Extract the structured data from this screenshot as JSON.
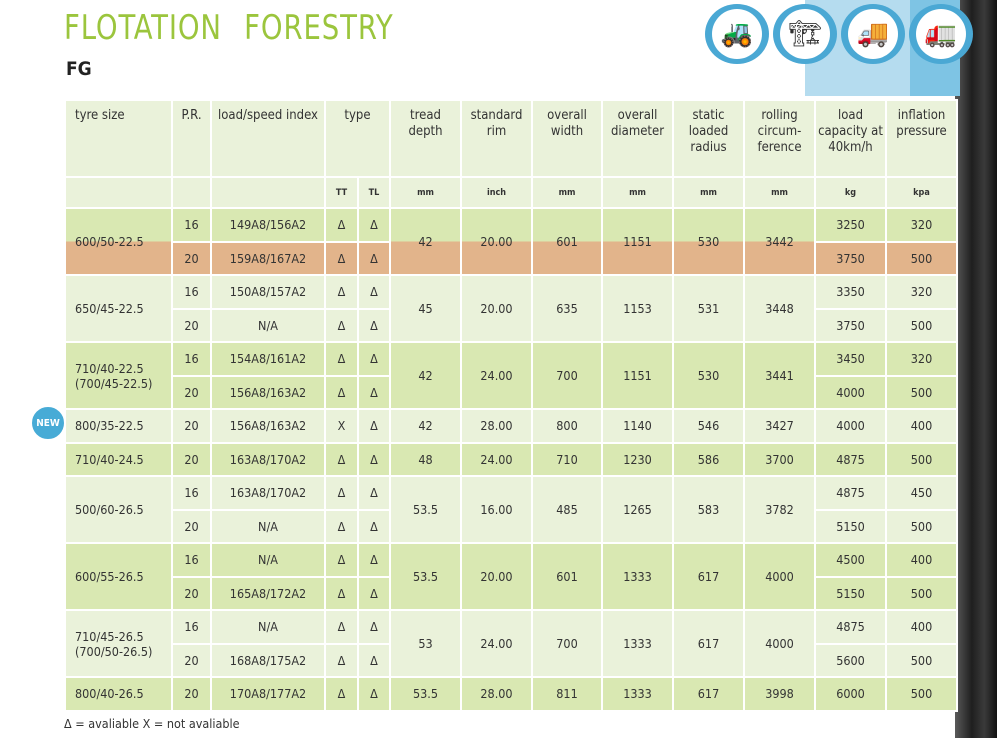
{
  "title": "FLOTATION  FORESTRY",
  "subtitle": "FG",
  "icons": [
    "tractor-icon",
    "harvester-icon",
    "log-truck-icon",
    "forwarder-icon"
  ],
  "headers": [
    "tyre size",
    "P.R.",
    "load/speed index",
    "type",
    "tread depth",
    "standard rim",
    "overall width",
    "overall diameter",
    "static loaded radius",
    "rolling circum-ference",
    "load capacity at 40km/h",
    "inflation pressure"
  ],
  "units": [
    "",
    "",
    "",
    "TT",
    "TL",
    "mm",
    "inch",
    "mm",
    "mm",
    "mm",
    "mm",
    "kg",
    "kpa"
  ],
  "new_badge": "NEW",
  "groups": [
    {
      "tyre_size": "600/50-22.5",
      "tread": "42",
      "rim": "20.00",
      "width": "601",
      "diameter": "1151",
      "radius": "530",
      "rolling": "3442",
      "rows": [
        {
          "pr": "16",
          "index": "149A8/156A2",
          "tt": "Δ",
          "tl": "Δ",
          "load": "3250",
          "pressure": "320"
        },
        {
          "pr": "20",
          "index": "159A8/167A2",
          "tt": "Δ",
          "tl": "Δ",
          "load": "3750",
          "pressure": "500",
          "highlight": true
        }
      ]
    },
    {
      "tyre_size": "650/45-22.5",
      "tread": "45",
      "rim": "20.00",
      "width": "635",
      "diameter": "1153",
      "radius": "531",
      "rolling": "3448",
      "rows": [
        {
          "pr": "16",
          "index": "150A8/157A2",
          "tt": "Δ",
          "tl": "Δ",
          "load": "3350",
          "pressure": "320"
        },
        {
          "pr": "20",
          "index": "N/A",
          "tt": "Δ",
          "tl": "Δ",
          "load": "3750",
          "pressure": "500"
        }
      ]
    },
    {
      "tyre_size": "710/40-22.5 (700/45-22.5)",
      "tread": "42",
      "rim": "24.00",
      "width": "700",
      "diameter": "1151",
      "radius": "530",
      "rolling": "3441",
      "rows": [
        {
          "pr": "16",
          "index": "154A8/161A2",
          "tt": "Δ",
          "tl": "Δ",
          "load": "3450",
          "pressure": "320"
        },
        {
          "pr": "20",
          "index": "156A8/163A2",
          "tt": "Δ",
          "tl": "Δ",
          "load": "4000",
          "pressure": "500"
        }
      ]
    },
    {
      "tyre_size": "800/35-22.5",
      "is_new": true,
      "tread": "42",
      "rim": "28.00",
      "width": "800",
      "diameter": "1140",
      "radius": "546",
      "rolling": "3427",
      "rows": [
        {
          "pr": "20",
          "index": "156A8/163A2",
          "tt": "X",
          "tl": "Δ",
          "load": "4000",
          "pressure": "400"
        }
      ]
    },
    {
      "tyre_size": "710/40-24.5",
      "tread": "48",
      "rim": "24.00",
      "width": "710",
      "diameter": "1230",
      "radius": "586",
      "rolling": "3700",
      "rows": [
        {
          "pr": "20",
          "index": "163A8/170A2",
          "tt": "Δ",
          "tl": "Δ",
          "load": "4875",
          "pressure": "500"
        }
      ]
    },
    {
      "tyre_size": "500/60-26.5",
      "tread": "53.5",
      "rim": "16.00",
      "width": "485",
      "diameter": "1265",
      "radius": "583",
      "rolling": "3782",
      "rows": [
        {
          "pr": "16",
          "index": "163A8/170A2",
          "tt": "Δ",
          "tl": "Δ",
          "load": "4875",
          "pressure": "450"
        },
        {
          "pr": "20",
          "index": "N/A",
          "tt": "Δ",
          "tl": "Δ",
          "load": "5150",
          "pressure": "500"
        }
      ]
    },
    {
      "tyre_size": "600/55-26.5",
      "tread": "53.5",
      "rim": "20.00",
      "width": "601",
      "diameter": "1333",
      "radius": "617",
      "rolling": "4000",
      "rows": [
        {
          "pr": "16",
          "index": "N/A",
          "tt": "Δ",
          "tl": "Δ",
          "load": "4500",
          "pressure": "400"
        },
        {
          "pr": "20",
          "index": "165A8/172A2",
          "tt": "Δ",
          "tl": "Δ",
          "load": "5150",
          "pressure": "500"
        }
      ]
    },
    {
      "tyre_size": "710/45-26.5 (700/50-26.5)",
      "tread": "53",
      "rim": "24.00",
      "width": "700",
      "diameter": "1333",
      "radius": "617",
      "rolling": "4000",
      "rows": [
        {
          "pr": "16",
          "index": "N/A",
          "tt": "Δ",
          "tl": "Δ",
          "load": "4875",
          "pressure": "400"
        },
        {
          "pr": "20",
          "index": "168A8/175A2",
          "tt": "Δ",
          "tl": "Δ",
          "load": "5600",
          "pressure": "500"
        }
      ]
    },
    {
      "tyre_size": "800/40-26.5",
      "tread": "53.5",
      "rim": "28.00",
      "width": "811",
      "diameter": "1333",
      "radius": "617",
      "rolling": "3998",
      "rows": [
        {
          "pr": "20",
          "index": "170A8/177A2",
          "tt": "Δ",
          "tl": "Δ",
          "load": "6000",
          "pressure": "500"
        }
      ]
    }
  ],
  "legend": "Δ = avaliable  X = not avaliable",
  "colors": {
    "title": "#9bc53d",
    "dark_row": "#d9e8b2",
    "light_row": "#eaf2da",
    "highlight": "#e2b48b",
    "accent": "#47abd6"
  }
}
